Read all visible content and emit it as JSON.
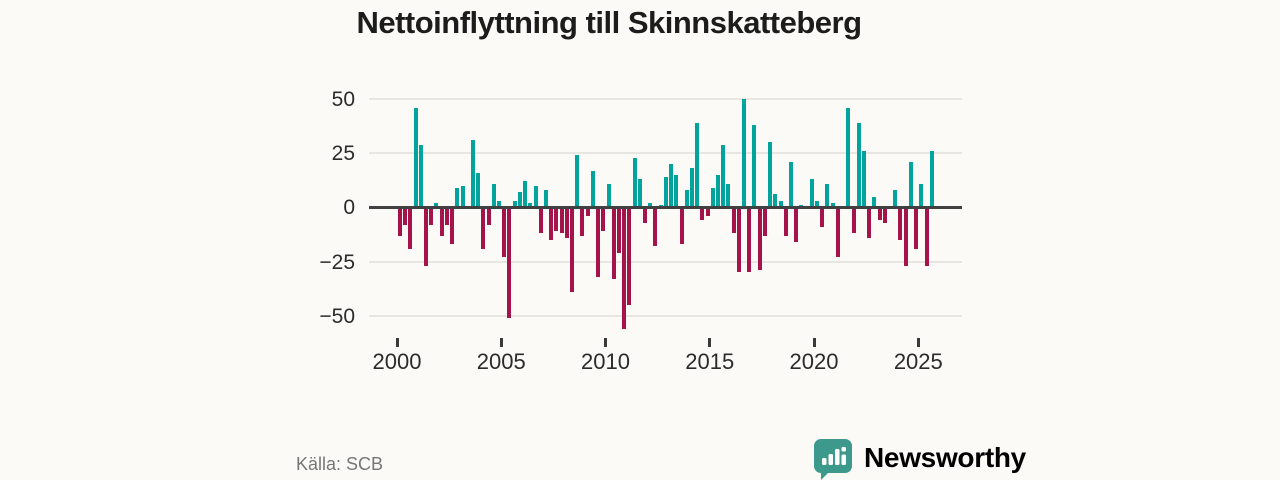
{
  "title": "Nettoinflyttning till Skinnskatteberg",
  "source": "Källa: SCB",
  "logo": {
    "text": "Newsworthy",
    "color": "#3d998c",
    "icon": "speech-bubble-barchart-icon"
  },
  "chart_data": {
    "type": "bar",
    "title": "Nettoinflyttning till Skinnskatteberg",
    "frequency": "quarterly",
    "start_period": "2000 Q1",
    "end_period": "2025 Q3",
    "values": [
      -13,
      -8,
      -19,
      46,
      29,
      -27,
      -8,
      2,
      -13,
      -8,
      -17,
      9,
      10,
      0,
      31,
      16,
      -19,
      -8,
      11,
      3,
      -23,
      -51,
      3,
      7,
      12,
      2,
      10,
      -12,
      8,
      -15,
      -11,
      -12,
      -14,
      -39,
      24,
      -13,
      -4,
      17,
      -32,
      -11,
      11,
      -33,
      -21,
      -56,
      -45,
      23,
      13,
      -7,
      2,
      -18,
      1,
      14,
      20,
      15,
      -17,
      8,
      18,
      39,
      -6,
      -4,
      9,
      15,
      29,
      11,
      -12,
      -30,
      50,
      -30,
      38,
      -29,
      -13,
      30,
      6,
      3,
      -13,
      21,
      -16,
      1,
      0,
      13,
      3,
      -9,
      11,
      2,
      -23,
      0,
      46,
      -12,
      39,
      26,
      -14,
      5,
      -6,
      -7,
      0,
      8,
      -15,
      -27,
      21,
      -19,
      11,
      -27,
      26
    ],
    "x_ticks": [
      {
        "year": 2000,
        "label": "2000"
      },
      {
        "year": 2005,
        "label": "2005"
      },
      {
        "year": 2010,
        "label": "2010"
      },
      {
        "year": 2015,
        "label": "2015"
      },
      {
        "year": 2020,
        "label": "2020"
      },
      {
        "year": 2025,
        "label": "2025"
      }
    ],
    "y_ticks": [
      {
        "value": 50,
        "label": "50"
      },
      {
        "value": 25,
        "label": "25"
      },
      {
        "value": 0,
        "label": "0"
      },
      {
        "value": -25,
        "label": "−25"
      },
      {
        "value": -50,
        "label": "−50"
      }
    ],
    "ylim": [
      -58,
      52
    ],
    "grid": true,
    "legend": null,
    "colors": {
      "positive": "#00a49d",
      "negative": "#a4134a"
    }
  }
}
